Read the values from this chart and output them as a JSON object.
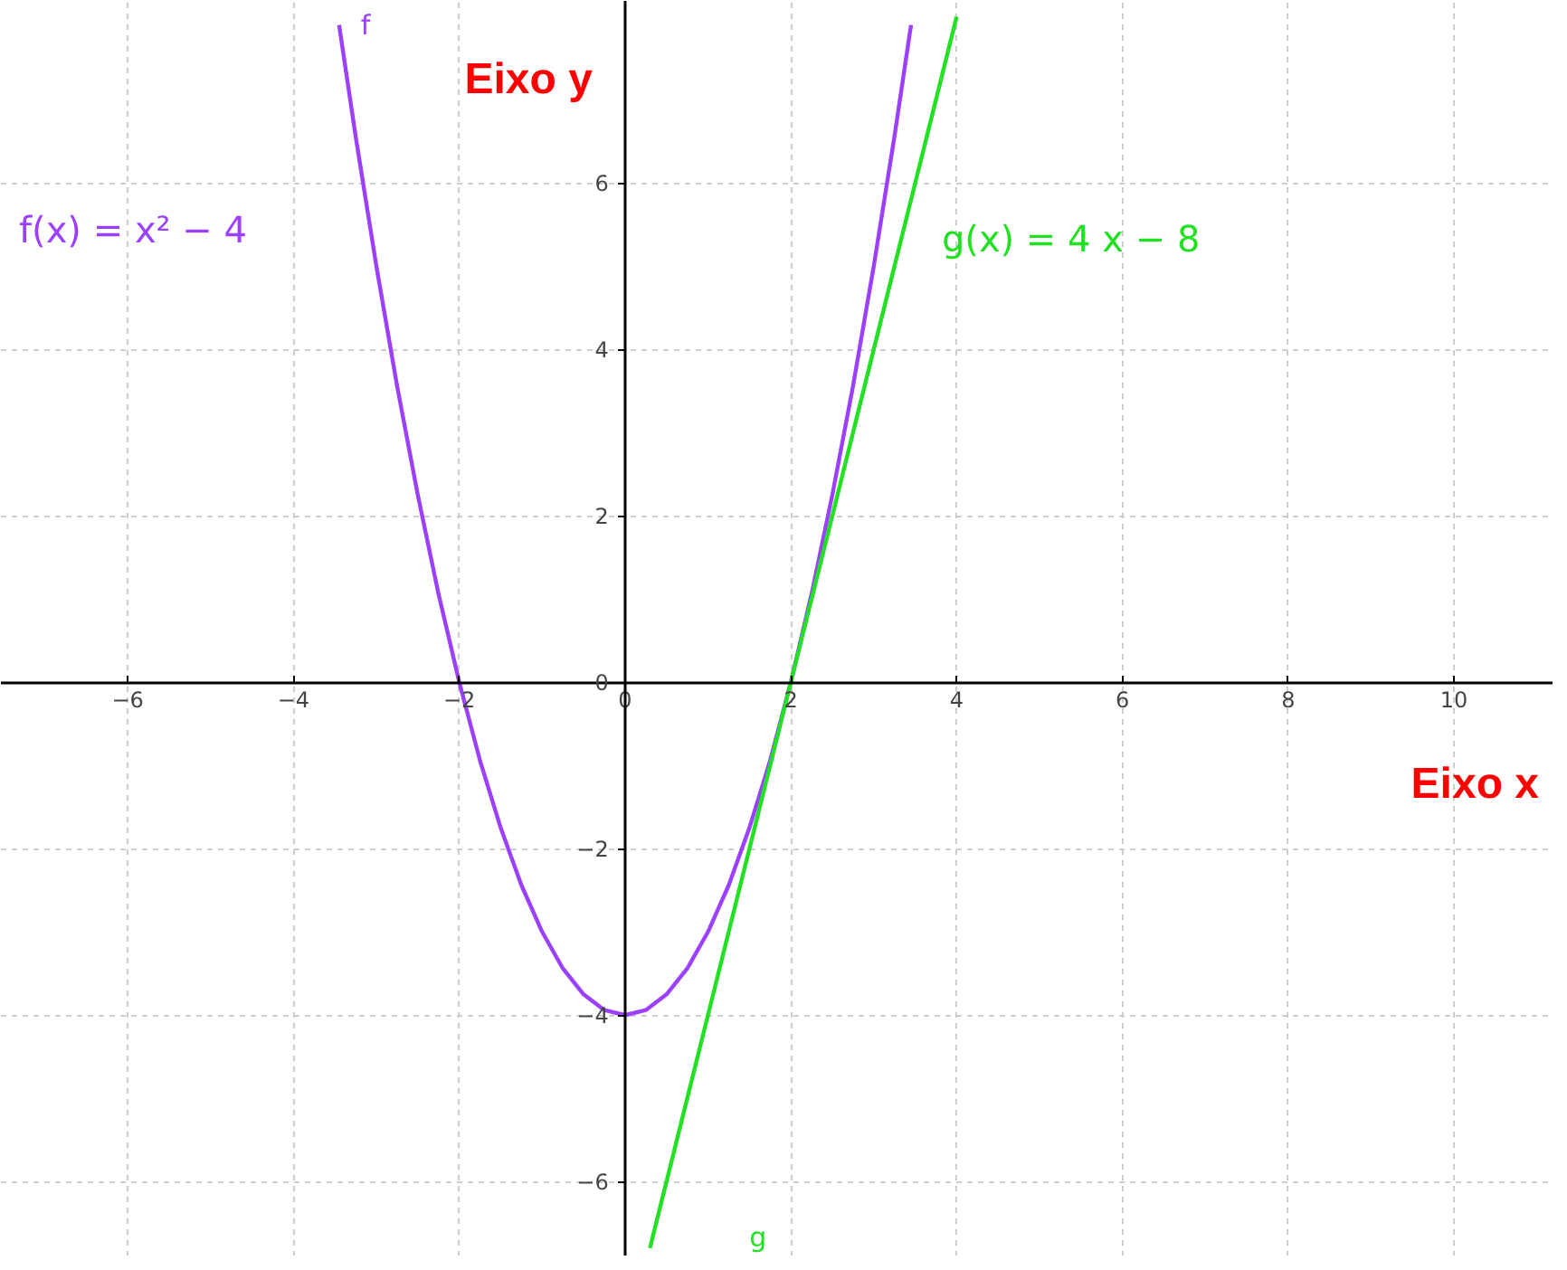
{
  "chart_data": {
    "type": "line",
    "xlabel": "Eixo x",
    "ylabel": "Eixo y",
    "xlim": [
      -7.53,
      11.2
    ],
    "ylim": [
      -6.9,
      8.19
    ],
    "xticks": [
      -6,
      -4,
      -2,
      0,
      2,
      4,
      6,
      8,
      10
    ],
    "yticks": [
      -6,
      -4,
      -2,
      0,
      2,
      4,
      6
    ],
    "grid": true,
    "marker": "none",
    "line_style": "solid",
    "series": [
      {
        "name": "f",
        "color": "#9b40ff",
        "x": [
          -3.45,
          -3.25,
          -3,
          -2.75,
          -2.5,
          -2.25,
          -2,
          -1.75,
          -1.5,
          -1.25,
          -1,
          -0.75,
          -0.5,
          -0.25,
          0,
          0.25,
          0.5,
          0.75,
          1,
          1.25,
          1.5,
          1.75,
          2,
          2.25,
          2.5,
          2.75,
          3,
          3.25,
          3.45
        ],
        "values": [
          7.9,
          6.56,
          5,
          3.56,
          2.25,
          1.06,
          0,
          -0.94,
          -1.75,
          -2.44,
          -3,
          -3.44,
          -3.75,
          -3.94,
          -4,
          -3.94,
          -3.75,
          -3.44,
          -3,
          -2.44,
          -1.75,
          -0.94,
          0,
          1.06,
          2.25,
          3.56,
          5,
          6.56,
          7.9
        ]
      },
      {
        "name": "g",
        "color": "#22e022",
        "x": [
          0.3,
          1,
          2,
          3,
          4
        ],
        "values": [
          -6.8,
          -4,
          0,
          4,
          8
        ]
      }
    ],
    "annotations": [
      "f(x) = x² − 4",
      "g(x) = 4 x − 8"
    ]
  }
}
